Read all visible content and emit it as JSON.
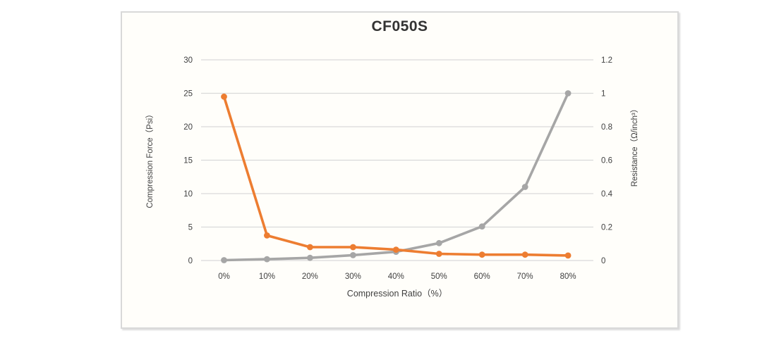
{
  "chart_card": {
    "background": "#fffefa",
    "border_color": "#d9d9d9"
  },
  "chart_data": {
    "type": "line",
    "title": "CF050S",
    "categories": [
      "0%",
      "10%",
      "20%",
      "30%",
      "40%",
      "50%",
      "60%",
      "70%",
      "80%"
    ],
    "xlabel": "Compression Ratio（%）",
    "left_axis": {
      "label": "Compression Force（Psi）",
      "ticks": [
        0,
        5,
        10,
        15,
        20,
        25,
        30
      ],
      "lim": [
        0,
        30
      ]
    },
    "right_axis": {
      "label": "Resistance（Ω/inch³）",
      "ticks": [
        0,
        0.2,
        0.4,
        0.6,
        0.8,
        1,
        1.2
      ],
      "lim": [
        0,
        1.2
      ]
    },
    "series": [
      {
        "name": "Compression Force",
        "axis": "left",
        "color": "#a6a6a6",
        "values": [
          0.05,
          0.2,
          0.4,
          0.8,
          1.3,
          2.6,
          5.1,
          11,
          25
        ]
      },
      {
        "name": "Resistance",
        "axis": "right",
        "color": "#ed7d31",
        "values": [
          0.98,
          0.15,
          0.08,
          0.08,
          0.065,
          0.04,
          0.035,
          0.035,
          0.03
        ]
      }
    ],
    "grid": true,
    "legend": "none",
    "gridline_color": "#d9d9d9",
    "text_color": "#404040"
  }
}
